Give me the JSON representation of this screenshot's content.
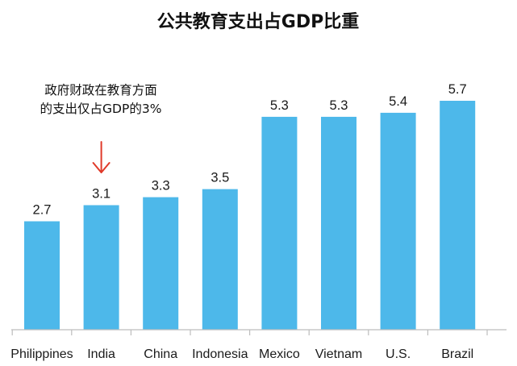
{
  "chart_data": {
    "type": "bar",
    "title": "公共教育支出占GDP比重",
    "categories": [
      "Philippines",
      "India",
      "China",
      "Indonesia",
      "Mexico",
      "Vietnam",
      "U.S.",
      "Brazil"
    ],
    "values": [
      2.7,
      3.1,
      3.3,
      3.5,
      5.3,
      5.3,
      5.4,
      5.7
    ],
    "value_labels": [
      "2.7",
      "3.1",
      "3.3",
      "3.5",
      "5.3",
      "5.3",
      "5.4",
      "5.7"
    ],
    "ylim": [
      0,
      5.7
    ],
    "grid": false,
    "legend": "none",
    "annotation": {
      "target": "India",
      "lines": [
        "政府财政在教育方面",
        "的支出仅占GDP的3%"
      ],
      "arrow_color": "#e03a2a"
    },
    "colors": {
      "bar": "#4db8ea",
      "axis": "#bdbdbd"
    }
  }
}
